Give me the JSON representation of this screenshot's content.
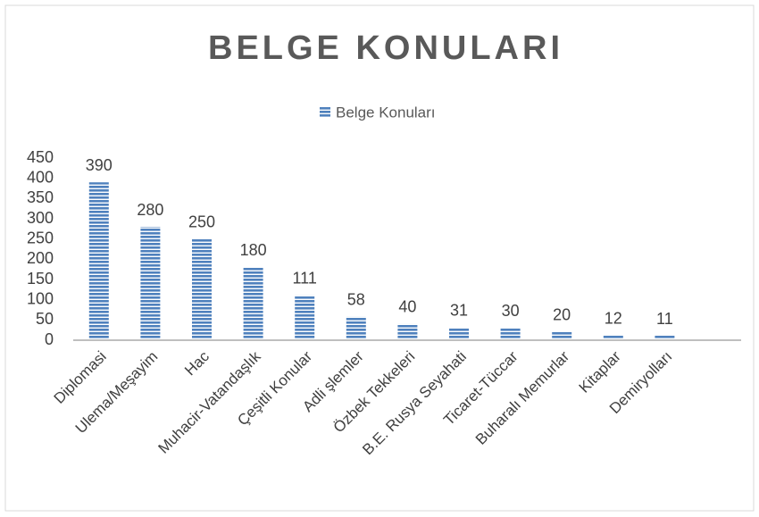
{
  "chart_data": {
    "type": "bar",
    "title": "BELGE KONULARI",
    "categories": [
      "Diplomasi",
      "Ulema/Meşayim",
      "Hac",
      "Muhacir-Vatandaşlık",
      "Çeşitli Konular",
      "Adli şlemler",
      "Özbek Tekkeleri",
      "B.E. Rusya Seyahati",
      "Ticaret-Tüccar",
      "Buharalı Memurlar",
      "Kitaplar",
      "Demiryolları"
    ],
    "series": [
      {
        "name": "Belge Konuları",
        "color": "#4f81bd",
        "values": [
          390,
          280,
          250,
          180,
          111,
          58,
          40,
          31,
          30,
          20,
          12,
          11
        ]
      }
    ],
    "ylim": [
      0,
      450
    ],
    "yticks": [
      0,
      50,
      100,
      150,
      200,
      250,
      300,
      350,
      400,
      450
    ],
    "grid": false,
    "legend": "top"
  }
}
